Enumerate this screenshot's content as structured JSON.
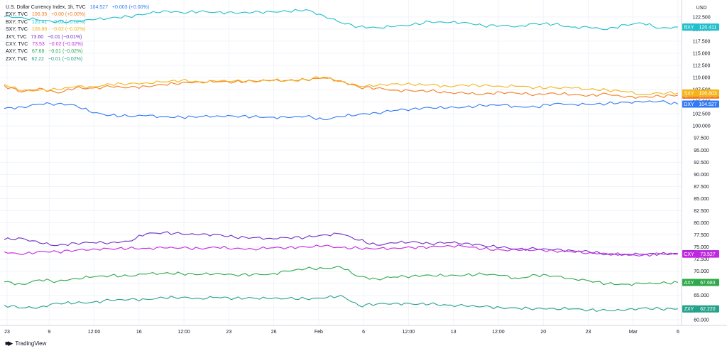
{
  "app": {
    "brand": "TradingView",
    "brand_icon": "tradingview-logo-icon"
  },
  "chart_data": {
    "type": "line",
    "currency_label": "USD",
    "y_ticks": [
      60.0,
      62.5,
      65.0,
      67.5,
      70.0,
      72.5,
      75.0,
      77.5,
      80.0,
      82.5,
      85.0,
      87.5,
      90.0,
      92.5,
      95.0,
      97.5,
      100.0,
      102.5,
      105.0,
      107.5,
      110.0,
      112.5,
      115.0,
      117.5,
      120.0,
      122.5
    ],
    "ylim": [
      58.8,
      126.0
    ],
    "x_ticks": [
      "23",
      "9",
      "12:00",
      "16",
      "12:00",
      "23",
      "26",
      "Feb",
      "6",
      "12:00",
      "13",
      "12:00",
      "20",
      "23",
      "Mar",
      "6"
    ],
    "grid": true,
    "series": [
      {
        "name": "DXY",
        "legend_text": "U.S. Dollar Currency Index, 1h, TVC",
        "last": "104.527",
        "change": "+0.003 (+0.00%)",
        "tag": "104.527",
        "color": "#3179f5",
        "values": [
          103.6,
          103.9,
          104.5,
          104.6,
          104.3,
          102.7,
          102.2,
          102.0,
          102.1,
          101.9,
          101.8,
          101.9,
          102.1,
          102.0,
          101.9,
          101.8,
          101.7,
          102.0,
          101.3,
          101.9,
          102.4,
          102.7,
          103.2,
          103.5,
          103.8,
          103.7,
          103.9,
          104.2,
          104.3,
          104.0,
          103.9,
          104.6,
          104.5,
          104.4,
          104.6,
          104.9,
          104.9,
          105.1,
          104.5
        ]
      },
      {
        "name": "EXY",
        "legend_text": "EXY, TVC",
        "last": "106.35",
        "change": "+0.00 (+0.00%)",
        "tag": "106.345",
        "color": "#f57c20",
        "values": [
          108.3,
          107.0,
          107.8,
          106.8,
          107.8,
          107.8,
          108.1,
          107.9,
          108.2,
          108.5,
          108.9,
          109.1,
          109.1,
          109.1,
          109.3,
          109.3,
          109.4,
          109.5,
          109.9,
          109.3,
          108.0,
          107.8,
          107.4,
          107.2,
          107.2,
          106.9,
          106.7,
          106.5,
          107.0,
          106.7,
          106.5,
          106.8,
          106.4,
          106.3,
          106.6,
          105.9,
          106.0,
          106.1,
          106.35
        ]
      },
      {
        "name": "BXY",
        "legend_text": "BXY, TVC",
        "last": "120.41",
        "change": "−0.02 (−0.02%)",
        "tag": "120.411",
        "color": "#22bfcc",
        "values": [
          122.6,
          122.4,
          121.8,
          121.5,
          121.6,
          121.9,
          122.3,
          122.6,
          123.1,
          123.8,
          123.4,
          123.6,
          123.5,
          123.3,
          123.4,
          123.6,
          123.6,
          124.0,
          122.8,
          121.3,
          120.5,
          120.3,
          120.5,
          120.9,
          121.5,
          121.3,
          121.4,
          120.7,
          120.7,
          120.6,
          121.1,
          121.0,
          120.4,
          120.3,
          119.9,
          120.9,
          121.2,
          120.2,
          120.41
        ]
      },
      {
        "name": "SXY",
        "legend_text": "SXY, TVC",
        "last": "106.80",
        "change": "−0.02 (−0.02%)",
        "tag": "106.803",
        "color": "#f4b41a",
        "values": [
          108.6,
          107.2,
          107.4,
          107.5,
          108.1,
          108.1,
          108.6,
          108.7,
          108.9,
          109.1,
          109.4,
          109.1,
          109.2,
          109.3,
          109.2,
          109.4,
          109.4,
          109.6,
          110.1,
          109.2,
          108.2,
          108.3,
          108.7,
          108.5,
          108.5,
          108.2,
          108.4,
          108.4,
          108.2,
          108.2,
          107.9,
          107.9,
          107.8,
          107.6,
          107.4,
          107.1,
          106.5,
          106.8,
          106.8
        ]
      },
      {
        "name": "JXY",
        "legend_text": "JXY, TVC",
        "last": "73.60",
        "change": "−0.01 (−0.01%)",
        "tag": "73.600",
        "color": "#6d2fc4",
        "values": [
          76.5,
          76.8,
          75.8,
          75.3,
          75.8,
          75.9,
          75.9,
          76.2,
          77.7,
          78.0,
          77.7,
          77.5,
          77.6,
          77.0,
          76.9,
          76.8,
          76.9,
          77.0,
          77.5,
          77.7,
          76.4,
          75.4,
          75.8,
          76.1,
          75.7,
          75.9,
          75.8,
          75.3,
          74.9,
          74.6,
          74.6,
          74.4,
          74.3,
          74.0,
          73.5,
          73.5,
          73.5,
          73.6,
          73.6
        ]
      },
      {
        "name": "CXY",
        "legend_text": "CXY, TVC",
        "last": "73.53",
        "change": "−0.02 (−0.02%)",
        "tag": "73.527",
        "color": "#c326e0",
        "values": [
          74.0,
          73.4,
          74.1,
          74.0,
          74.3,
          74.6,
          74.6,
          74.7,
          74.7,
          74.8,
          74.8,
          74.7,
          74.9,
          74.7,
          74.6,
          74.8,
          74.9,
          75.0,
          75.2,
          74.9,
          74.7,
          74.6,
          74.8,
          74.9,
          75.0,
          75.3,
          75.1,
          74.6,
          74.4,
          74.3,
          74.4,
          74.2,
          74.0,
          73.8,
          73.6,
          73.4,
          73.3,
          73.6,
          73.53
        ]
      },
      {
        "name": "AXY",
        "legend_text": "AXY, TVC",
        "last": "67.68",
        "change": "−0.01 (−0.02%)",
        "tag": "67.683",
        "color": "#2ea84a",
        "values": [
          67.8,
          67.3,
          68.2,
          67.9,
          68.5,
          68.8,
          69.1,
          69.0,
          69.4,
          69.6,
          69.5,
          69.3,
          69.6,
          69.2,
          69.3,
          69.4,
          70.0,
          70.5,
          70.6,
          70.8,
          68.9,
          68.4,
          68.8,
          69.0,
          69.2,
          69.0,
          69.2,
          69.4,
          69.1,
          68.5,
          69.2,
          69.0,
          68.5,
          68.0,
          67.4,
          67.3,
          67.4,
          67.5,
          67.683
        ]
      },
      {
        "name": "ZXY",
        "legend_text": "ZXY, TVC",
        "last": "62.22",
        "change": "−0.01 (−0.02%)",
        "tag": "62.220",
        "color": "#26a28a",
        "values": [
          63.0,
          62.4,
          62.6,
          63.4,
          63.4,
          63.6,
          64.0,
          64.1,
          64.2,
          64.5,
          64.6,
          64.4,
          64.6,
          64.4,
          64.5,
          64.3,
          64.4,
          64.3,
          64.4,
          65.0,
          62.9,
          63.2,
          63.4,
          63.2,
          63.2,
          63.0,
          62.8,
          62.7,
          62.5,
          62.3,
          62.3,
          62.3,
          62.2,
          62.0,
          61.9,
          61.9,
          62.4,
          62.2,
          62.22
        ]
      }
    ]
  }
}
